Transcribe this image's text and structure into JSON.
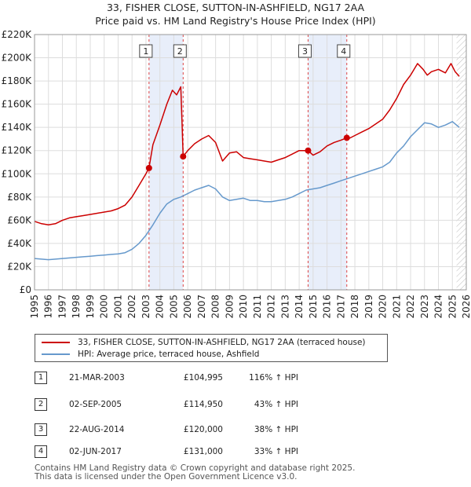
{
  "title": "33, FISHER CLOSE, SUTTON-IN-ASHFIELD, NG17 2AA",
  "subtitle": "Price paid vs. HM Land Registry's House Price Index (HPI)",
  "legend": {
    "red_label": "33, FISHER CLOSE, SUTTON-IN-ASHFIELD, NG17 2AA (terraced house)",
    "blue_label": "HPI: Average price, terraced house, Ashfield"
  },
  "sales": [
    {
      "n": "1",
      "date": "21-MAR-2003",
      "price": "£104,995",
      "hpi": "116% ↑ HPI"
    },
    {
      "n": "2",
      "date": "02-SEP-2005",
      "price": "£114,950",
      "hpi": "43% ↑ HPI"
    },
    {
      "n": "3",
      "date": "22-AUG-2014",
      "price": "£120,000",
      "hpi": "38% ↑ HPI"
    },
    {
      "n": "4",
      "date": "02-JUN-2017",
      "price": "£131,000",
      "hpi": "33% ↑ HPI"
    }
  ],
  "footer": {
    "line1": "Contains HM Land Registry data © Crown copyright and database right 2025.",
    "line2": "This data is licensed under the Open Government Licence v3.0."
  },
  "colors": {
    "red": "#cc0000",
    "blue": "#6699cc",
    "shade": "#e8eefa",
    "grid": "#dddddd"
  },
  "chart_data": {
    "type": "line",
    "xlim": [
      1995,
      2026
    ],
    "ylim": [
      0,
      220000
    ],
    "x_ticks": [
      1995,
      1996,
      1997,
      1998,
      1999,
      2000,
      2001,
      2002,
      2003,
      2004,
      2005,
      2006,
      2007,
      2008,
      2009,
      2010,
      2011,
      2012,
      2013,
      2014,
      2015,
      2016,
      2017,
      2018,
      2019,
      2020,
      2021,
      2022,
      2023,
      2024,
      2025,
      2026
    ],
    "y_ticks": [
      0,
      20000,
      40000,
      60000,
      80000,
      100000,
      120000,
      140000,
      160000,
      180000,
      200000,
      220000
    ],
    "y_tick_labels": [
      "£0",
      "£20K",
      "£40K",
      "£60K",
      "£80K",
      "£100K",
      "£120K",
      "£140K",
      "£160K",
      "£180K",
      "£200K",
      "£220K"
    ],
    "shaded_ranges": [
      [
        2003.22,
        2005.67
      ],
      [
        2014.64,
        2017.42
      ]
    ],
    "hatched_from": 2025.3,
    "markers": [
      {
        "label": "1",
        "x": 2003.22,
        "y": 104995
      },
      {
        "label": "2",
        "x": 2005.67,
        "y": 114950
      },
      {
        "label": "3",
        "x": 2014.64,
        "y": 120000
      },
      {
        "label": "4",
        "x": 2017.42,
        "y": 131000
      }
    ],
    "series": [
      {
        "name": "33, FISHER CLOSE, SUTTON-IN-ASHFIELD, NG17 2AA (terraced house)",
        "color": "#cc0000",
        "x": [
          1995,
          1995.5,
          1996,
          1996.5,
          1997,
          1997.5,
          1998,
          1998.5,
          1999,
          1999.5,
          2000,
          2000.5,
          2001,
          2001.5,
          2002,
          2002.5,
          2003,
          2003.22,
          2003.5,
          2004,
          2004.5,
          2004.9,
          2005.2,
          2005.5,
          2005.6,
          2005.67,
          2006,
          2006.5,
          2007,
          2007.5,
          2008,
          2008.5,
          2009,
          2009.5,
          2010,
          2010.5,
          2011,
          2011.5,
          2012,
          2012.5,
          2013,
          2013.5,
          2014,
          2014.64,
          2015,
          2015.5,
          2016,
          2016.5,
          2017,
          2017.42,
          2017.5,
          2018,
          2018.5,
          2019,
          2019.5,
          2020,
          2020.5,
          2021,
          2021.5,
          2022,
          2022.5,
          2022.9,
          2023.2,
          2023.5,
          2024,
          2024.5,
          2024.9,
          2025.2,
          2025.5
        ],
        "y": [
          59000,
          57000,
          56000,
          57000,
          60000,
          62000,
          63000,
          64000,
          65000,
          66000,
          67000,
          68000,
          70000,
          73000,
          80000,
          90000,
          100000,
          104995,
          125000,
          142000,
          160000,
          172000,
          168000,
          175000,
          140000,
          114950,
          120000,
          126000,
          130000,
          133000,
          127000,
          111000,
          118000,
          119000,
          114000,
          113000,
          112000,
          111000,
          110000,
          112000,
          114000,
          117000,
          120000,
          120000,
          116000,
          119000,
          124000,
          127000,
          129000,
          131000,
          130000,
          133000,
          136000,
          139000,
          143000,
          147000,
          155000,
          165000,
          177000,
          185000,
          195000,
          190000,
          185000,
          188000,
          190000,
          187000,
          195000,
          188000,
          184000
        ]
      },
      {
        "name": "HPI: Average price, terraced house, Ashfield",
        "color": "#6699cc",
        "x": [
          1995,
          1995.5,
          1996,
          1996.5,
          1997,
          1997.5,
          1998,
          1998.5,
          1999,
          1999.5,
          2000,
          2000.5,
          2001,
          2001.5,
          2002,
          2002.5,
          2003,
          2003.5,
          2004,
          2004.5,
          2005,
          2005.5,
          2006,
          2006.5,
          2007,
          2007.5,
          2008,
          2008.5,
          2009,
          2009.5,
          2010,
          2010.5,
          2011,
          2011.5,
          2012,
          2012.5,
          2013,
          2013.5,
          2014,
          2014.5,
          2015,
          2015.5,
          2016,
          2016.5,
          2017,
          2017.5,
          2018,
          2018.5,
          2019,
          2019.5,
          2020,
          2020.5,
          2021,
          2021.5,
          2022,
          2022.5,
          2023,
          2023.5,
          2024,
          2024.5,
          2025,
          2025.5
        ],
        "y": [
          27000,
          26500,
          26000,
          26500,
          27000,
          27500,
          28000,
          28500,
          29000,
          29500,
          30000,
          30500,
          31000,
          32000,
          35000,
          40000,
          47000,
          56000,
          66000,
          74000,
          78000,
          80000,
          83000,
          86000,
          88000,
          90000,
          87000,
          80000,
          77000,
          78000,
          79000,
          77000,
          77000,
          76000,
          76000,
          77000,
          78000,
          80000,
          83000,
          86000,
          87000,
          88000,
          90000,
          92000,
          94000,
          96000,
          98000,
          100000,
          102000,
          104000,
          106000,
          110000,
          118000,
          124000,
          132000,
          138000,
          144000,
          143000,
          140000,
          142000,
          145000,
          140000
        ]
      }
    ]
  }
}
